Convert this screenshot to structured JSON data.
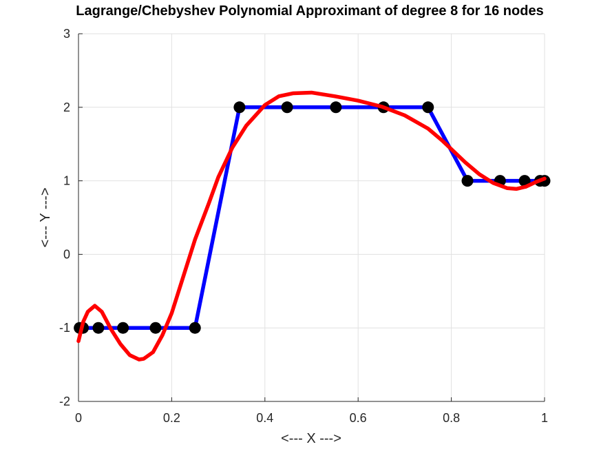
{
  "chart_data": {
    "type": "line",
    "title": "Lagrange/Chebyshev Polynomial Approximant of degree 8 for 16 nodes",
    "xlabel": "<--- X --->",
    "ylabel": "<--- Y --->",
    "xlim": [
      0,
      1
    ],
    "ylim": [
      -2,
      3
    ],
    "xticks": [
      0,
      0.2,
      0.4,
      0.6,
      0.8,
      1
    ],
    "yticks": [
      -2,
      -1,
      0,
      1,
      2,
      3
    ],
    "xtick_labels": [
      "0",
      "0.2",
      "0.4",
      "0.6",
      "0.8",
      "1"
    ],
    "ytick_labels": [
      "-2",
      "-1",
      "0",
      "1",
      "2",
      "3"
    ],
    "grid": true,
    "series": [
      {
        "style": "line-with-markers",
        "color": "#0000ff",
        "marker_color": "#000000",
        "x": [
          0.0024,
          0.0096,
          0.0427,
          0.0955,
          0.1654,
          0.25,
          0.3455,
          0.4477,
          0.5523,
          0.6545,
          0.75,
          0.8346,
          0.9045,
          0.9573,
          0.9904,
          1.0
        ],
        "y": [
          -1,
          -1,
          -1,
          -1,
          -1,
          -1,
          2,
          2,
          2,
          2,
          2,
          1,
          1,
          1,
          1,
          1
        ]
      },
      {
        "style": "line",
        "color": "#ff0000",
        "x": [
          0.0,
          0.01,
          0.02,
          0.035,
          0.05,
          0.07,
          0.09,
          0.11,
          0.13,
          0.14,
          0.16,
          0.18,
          0.2,
          0.22,
          0.25,
          0.28,
          0.3,
          0.33,
          0.36,
          0.4,
          0.43,
          0.46,
          0.5,
          0.55,
          0.6,
          0.65,
          0.7,
          0.75,
          0.78,
          0.8,
          0.83,
          0.86,
          0.89,
          0.92,
          0.94,
          0.96,
          0.98,
          1.0
        ],
        "y": [
          -1.18,
          -0.92,
          -0.78,
          -0.7,
          -0.78,
          -1.02,
          -1.22,
          -1.37,
          -1.43,
          -1.42,
          -1.33,
          -1.1,
          -0.8,
          -0.4,
          0.2,
          0.7,
          1.05,
          1.45,
          1.75,
          2.03,
          2.15,
          2.19,
          2.2,
          2.15,
          2.09,
          2.01,
          1.89,
          1.71,
          1.55,
          1.43,
          1.25,
          1.09,
          0.97,
          0.9,
          0.89,
          0.92,
          0.98,
          1.03
        ]
      }
    ]
  }
}
